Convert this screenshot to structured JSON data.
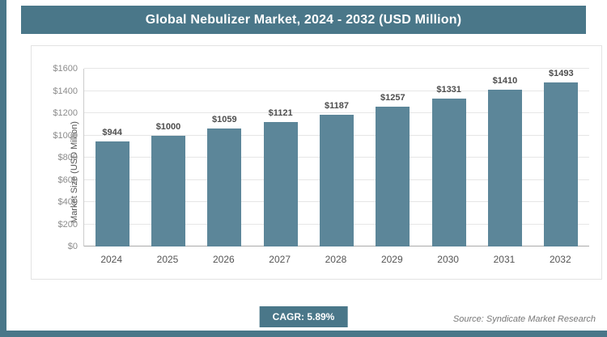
{
  "title": "Global Nebulizer Market, 2024 - 2032 (USD Million)",
  "colors": {
    "accent": "#4a7789",
    "bar": "#5c8699",
    "gridline": "#e6e6e6",
    "axis_text": "#8c8c8c"
  },
  "chart_data": {
    "type": "bar",
    "title": "Global Nebulizer Market, 2024 - 2032 (USD Million)",
    "categories": [
      "2024",
      "2025",
      "2026",
      "2027",
      "2028",
      "2029",
      "2030",
      "2031",
      "2032"
    ],
    "values": [
      944,
      1000,
      1059,
      1121,
      1187,
      1257,
      1331,
      1410,
      1493
    ],
    "value_labels": [
      "$944",
      "$1000",
      "$1059",
      "$1121",
      "$1187",
      "$1257",
      "$1331",
      "$1410",
      "$1493"
    ],
    "xlabel": "",
    "ylabel": "Market Size (USD Million)",
    "ylim": [
      0,
      1600
    ],
    "ytick_step": 200,
    "ytick_labels": [
      "$0",
      "$200",
      "$400",
      "$600",
      "$800",
      "$1000",
      "$1200",
      "$1400",
      "$1600"
    ],
    "grid": true,
    "legend": "none"
  },
  "footer": {
    "cagr_label": "CAGR: 5.89%",
    "source": "Source: Syndicate Market Research"
  }
}
